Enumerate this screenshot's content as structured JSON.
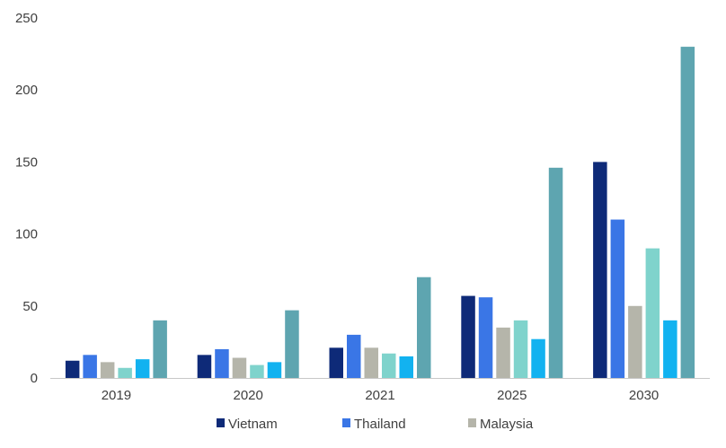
{
  "chart_data": {
    "type": "bar",
    "categories": [
      "2019",
      "2020",
      "2021",
      "2025",
      "2030"
    ],
    "series": [
      {
        "name": "Vietnam",
        "color": "#0e2a78",
        "values": [
          12,
          16,
          21,
          57,
          150
        ]
      },
      {
        "name": "Thailand",
        "color": "#3a76e6",
        "values": [
          16,
          20,
          30,
          56,
          110
        ]
      },
      {
        "name": "Malaysia",
        "color": "#b5b5aa",
        "values": [
          11,
          14,
          21,
          35,
          50
        ]
      },
      {
        "color": "#7fd3cc",
        "values": [
          7,
          9,
          17,
          40,
          90
        ]
      },
      {
        "color": "#12b2f0",
        "values": [
          13,
          11,
          15,
          27,
          40
        ]
      },
      {
        "color": "#5ea5b0",
        "values": [
          40,
          47,
          70,
          146,
          230
        ]
      }
    ],
    "ylim": [
      0,
      250
    ],
    "yticks": [
      0,
      50,
      100,
      150,
      200,
      250
    ],
    "grid": false,
    "legend_position": "bottom"
  }
}
